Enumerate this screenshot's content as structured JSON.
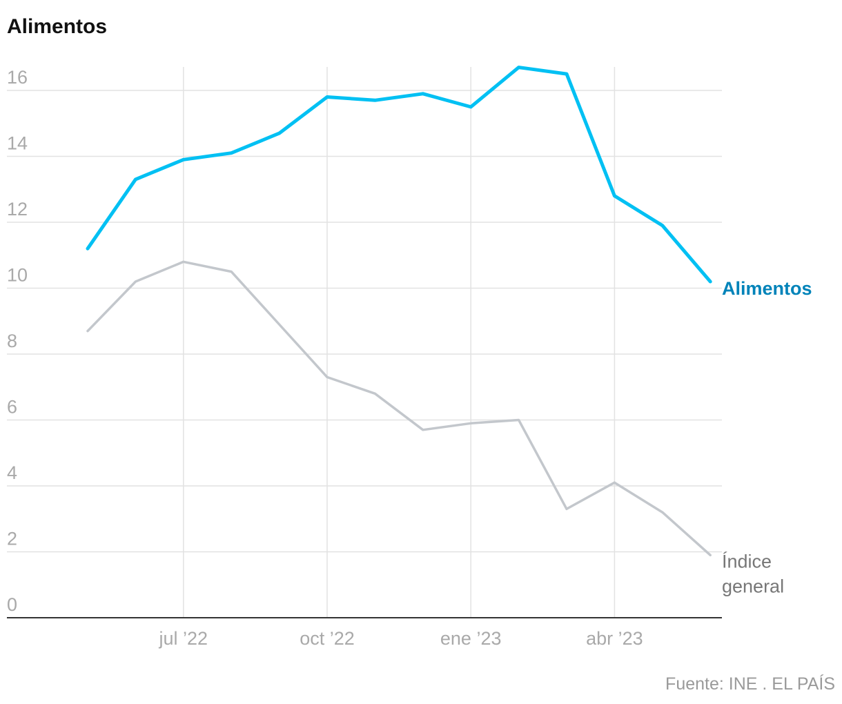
{
  "title": "Alimentos",
  "source": "Fuente: INE . EL PAÍS",
  "chart_data": {
    "type": "line",
    "title": "Alimentos",
    "xlabel": "",
    "ylabel": "",
    "ylim": [
      0,
      16
    ],
    "yticks": [
      0,
      2,
      4,
      6,
      8,
      10,
      12,
      14,
      16
    ],
    "grid": true,
    "x": [
      "2022-05",
      "2022-06",
      "2022-07",
      "2022-08",
      "2022-09",
      "2022-10",
      "2022-11",
      "2022-12",
      "2023-01",
      "2023-02",
      "2023-03",
      "2023-04",
      "2023-05",
      "2023-06"
    ],
    "xticks": [
      {
        "x": "2022-07",
        "label": "jul ’22"
      },
      {
        "x": "2022-10",
        "label": "oct ’22"
      },
      {
        "x": "2023-01",
        "label": "ene ’23"
      },
      {
        "x": "2023-04",
        "label": "abr ’23"
      }
    ],
    "series": [
      {
        "name": "Alimentos",
        "color": "#00c0f3",
        "label_color": "#0083b9",
        "label_lines": [
          "Alimentos"
        ],
        "values": [
          11.2,
          13.3,
          13.9,
          14.1,
          14.7,
          15.8,
          15.7,
          15.9,
          15.5,
          16.7,
          16.5,
          12.8,
          11.9,
          10.2
        ]
      },
      {
        "name": "Índice general",
        "color": "#c3c7cc",
        "label_color": "#777777",
        "label_lines": [
          "Índice",
          "general"
        ],
        "values": [
          8.7,
          10.2,
          10.8,
          10.5,
          8.9,
          7.3,
          6.8,
          5.7,
          5.9,
          6.0,
          3.3,
          4.1,
          3.2,
          1.9
        ]
      }
    ]
  }
}
